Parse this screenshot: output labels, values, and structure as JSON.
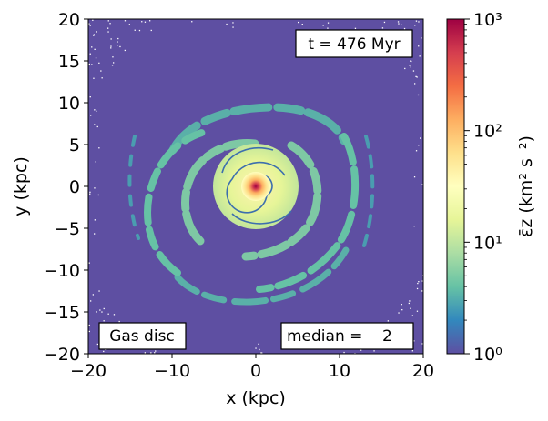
{
  "chart_data": {
    "type": "heatmap",
    "title": "",
    "xlabel": "x (kpc)",
    "ylabel": "y (kpc)",
    "xlim": [
      -20,
      20
    ],
    "ylim": [
      -20,
      20
    ],
    "xticks": [
      -20,
      -10,
      0,
      10,
      20
    ],
    "yticks": [
      -20,
      -15,
      -10,
      -5,
      0,
      5,
      10,
      15,
      20
    ],
    "xtick_labels": [
      "−20",
      "−10",
      "0",
      "10",
      "20"
    ],
    "ytick_labels": [
      "−20",
      "−15",
      "−10",
      "−5",
      "0",
      "5",
      "10",
      "15",
      "20"
    ],
    "colorbar": {
      "label": "ε̄z (km² s⁻²)",
      "scale": "log",
      "range": [
        1,
        1000
      ],
      "ticks": [
        1,
        10,
        100,
        1000
      ],
      "tick_labels": [
        "10⁰",
        "10¹",
        "10²",
        "10³"
      ],
      "colormap": "Spectral_r"
    },
    "annotations": {
      "time": "t = 476 Myr",
      "component": "Gas disc",
      "median": "median =    2"
    },
    "background_value": 1,
    "features": [
      "central bright core",
      "two-armed spiral disc",
      "fragmented outer spiral arms"
    ]
  },
  "colors": {
    "background": "#5e4fa2",
    "arm_outer": "#5ab0a8",
    "arm_mid": "#9fd5a3",
    "disc": "#e6f598",
    "core_warm": "#fdbf6f",
    "core_hot": "#d53e4f",
    "core_peak": "#9e0142"
  }
}
